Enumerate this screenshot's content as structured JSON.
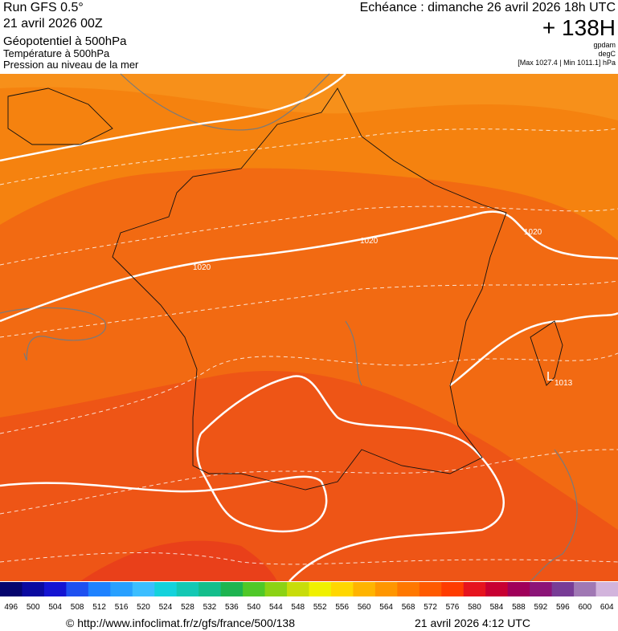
{
  "header": {
    "run": "Run GFS 0.5°",
    "date": "21 avril 2026 00Z",
    "line1": "Géopotentiel à 500hPa",
    "line2": "Température à 500hPa",
    "line3": "Pression au niveau de la mer",
    "echeance": "Echéance : dimanche 26 avril 2026 18h UTC",
    "horizon": "+ 138H",
    "unit1": "gpdam",
    "unit2": "degC",
    "range": "[Max 1027.4 | Min 1011.1] hPa"
  },
  "map": {
    "labels": [
      {
        "text": "1020"
      },
      {
        "text": "1020"
      },
      {
        "text": "1020"
      },
      {
        "text": "L"
      },
      {
        "text": "1013"
      }
    ]
  },
  "scale": [
    {
      "label": 496,
      "color": "#05056e"
    },
    {
      "label": 500,
      "color": "#0a0aa0"
    },
    {
      "label": 504,
      "color": "#1414d2"
    },
    {
      "label": 508,
      "color": "#1e50f0"
    },
    {
      "label": 512,
      "color": "#1e82ff"
    },
    {
      "label": 516,
      "color": "#28a0ff"
    },
    {
      "label": 520,
      "color": "#3cbeff"
    },
    {
      "label": 524,
      "color": "#14d2dc"
    },
    {
      "label": 528,
      "color": "#14c8b4"
    },
    {
      "label": 532,
      "color": "#14be8c"
    },
    {
      "label": 536,
      "color": "#1eb450"
    },
    {
      "label": 540,
      "color": "#50c828"
    },
    {
      "label": 544,
      "color": "#8cd214"
    },
    {
      "label": 548,
      "color": "#c8dc0a"
    },
    {
      "label": 552,
      "color": "#f0f000"
    },
    {
      "label": 556,
      "color": "#ffd700"
    },
    {
      "label": 560,
      "color": "#ffb400"
    },
    {
      "label": 564,
      "color": "#ff9600"
    },
    {
      "label": 568,
      "color": "#ff7800"
    },
    {
      "label": 572,
      "color": "#ff5a00"
    },
    {
      "label": 576,
      "color": "#ff3c00"
    },
    {
      "label": 580,
      "color": "#e6141e"
    },
    {
      "label": 584,
      "color": "#c80032"
    },
    {
      "label": 588,
      "color": "#a0005a"
    },
    {
      "label": 592,
      "color": "#8c1478"
    },
    {
      "label": 596,
      "color": "#783c96"
    },
    {
      "label": 600,
      "color": "#a078b4"
    },
    {
      "label": 604,
      "color": "#d2b4dc"
    }
  ],
  "footer": {
    "url": "© http://www.infoclimat.fr/z/gfs/france/500/138",
    "timestamp": "21 avril 2026  4:12 UTC"
  }
}
